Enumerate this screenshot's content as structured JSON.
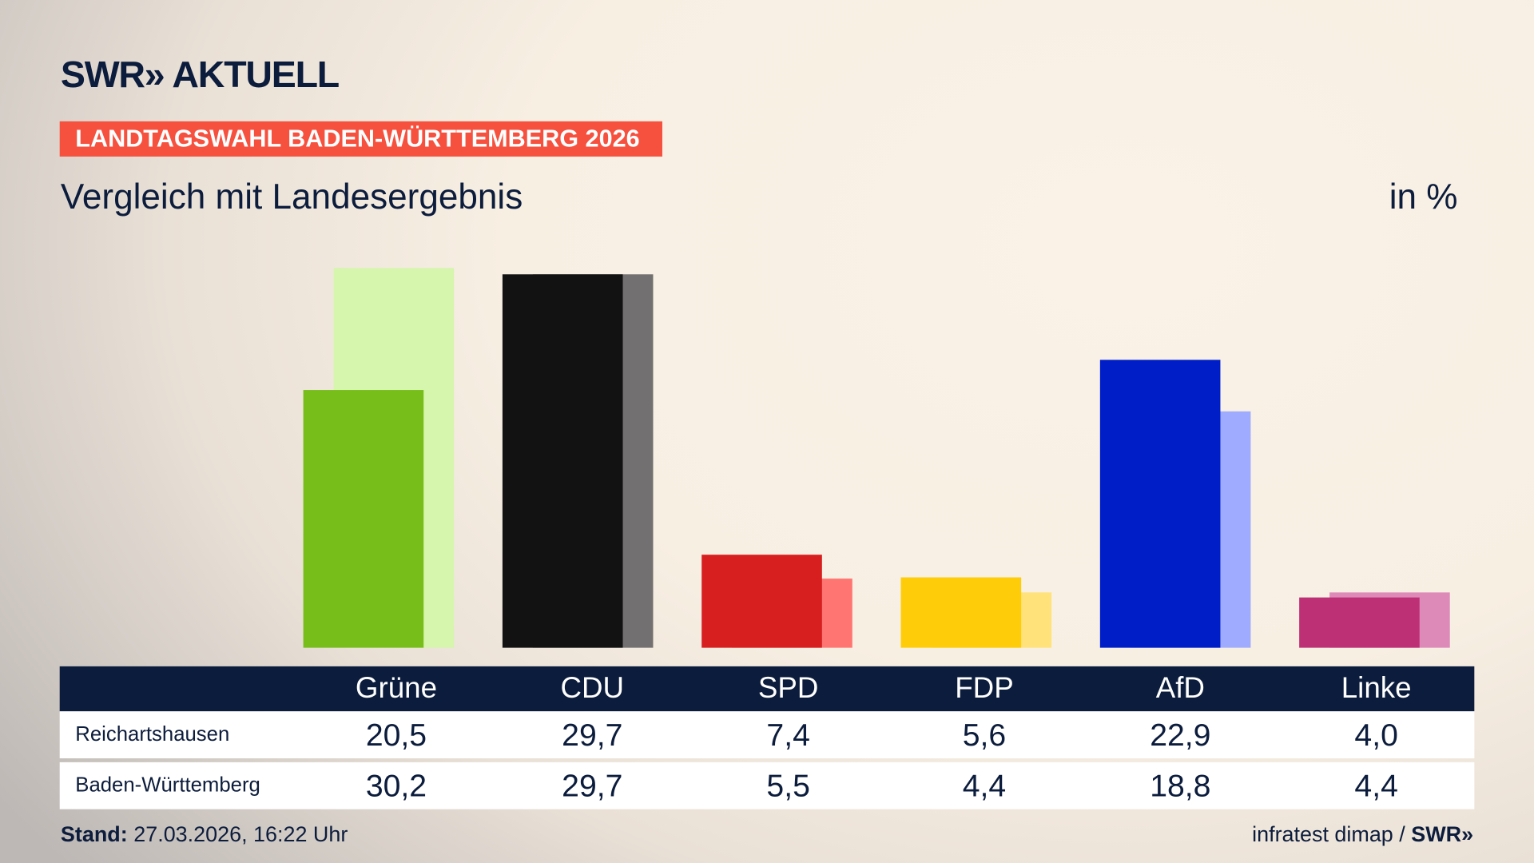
{
  "brand": {
    "logo": "SWR» AKTUELL",
    "footer_logo": "SWR»"
  },
  "tag": "LANDTAGSWAHL BADEN-WÜRTTEMBERG 2026",
  "subtitle": "Vergleich mit Landesergebnis",
  "unit": "in %",
  "footer": {
    "stand_label": "Stand:",
    "stand_value": "27.03.2026, 16:22 Uhr",
    "source": "infratest dimap /"
  },
  "chart_data": {
    "type": "bar",
    "categories": [
      "Grüne",
      "CDU",
      "SPD",
      "FDP",
      "AfD",
      "Linke"
    ],
    "series": [
      {
        "name": "Reichartshausen",
        "values": [
          20.5,
          29.7,
          7.4,
          5.6,
          22.9,
          4.0
        ],
        "display": [
          "20,5",
          "29,7",
          "7,4",
          "5,6",
          "22,9",
          "4,0"
        ]
      },
      {
        "name": "Baden-Württemberg",
        "values": [
          30.2,
          29.7,
          5.5,
          4.4,
          18.8,
          4.4
        ],
        "display": [
          "30,2",
          "29,7",
          "5,5",
          "4,4",
          "18,8",
          "4,4"
        ]
      }
    ],
    "colors": {
      "primary": [
        "#78be1b",
        "#121212",
        "#d71f1f",
        "#ffcc0a",
        "#001ec8",
        "#be3075"
      ],
      "secondary": [
        "#d6f5ad",
        "#727070",
        "#ff7571",
        "#ffe27a",
        "#9eabff",
        "#de8ab8"
      ]
    },
    "ylim": [
      0,
      32
    ],
    "grid": false
  }
}
